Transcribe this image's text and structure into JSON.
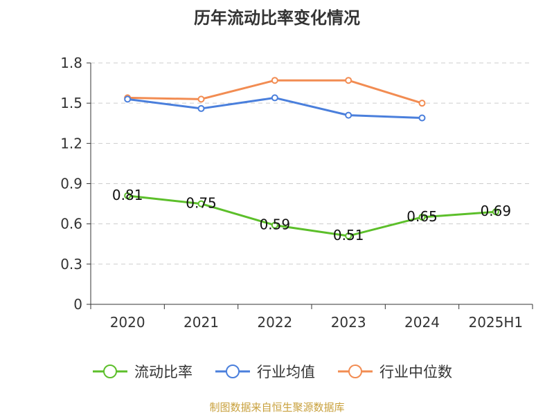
{
  "chart_data": {
    "type": "line",
    "title": "历年流动比率变化情况",
    "categories": [
      "2020",
      "2021",
      "2022",
      "2023",
      "2024",
      "2025H1"
    ],
    "ylim": [
      0,
      1.8
    ],
    "yticks": [
      "0",
      "0.3",
      "0.6",
      "0.9",
      "1.2",
      "1.5",
      "1.8"
    ],
    "ytick_values": [
      0,
      0.3,
      0.6,
      0.9,
      1.2,
      1.5,
      1.8
    ],
    "grid": true,
    "legend_position": "bottom",
    "series": [
      {
        "name": "流动比率",
        "color": "#5cbf2a",
        "values": [
          0.81,
          0.75,
          0.59,
          0.51,
          0.65,
          0.69
        ],
        "labels": [
          "0.81",
          "0.75",
          "0.59",
          "0.51",
          "0.65",
          "0.69"
        ]
      },
      {
        "name": "行业均值",
        "color": "#4a7fdc",
        "values": [
          1.53,
          1.46,
          1.54,
          1.41,
          1.39,
          null
        ]
      },
      {
        "name": "行业中位数",
        "color": "#f28c52",
        "values": [
          1.54,
          1.53,
          1.67,
          1.67,
          1.5,
          null
        ]
      }
    ]
  },
  "source": "制图数据来自恒生聚源数据库"
}
